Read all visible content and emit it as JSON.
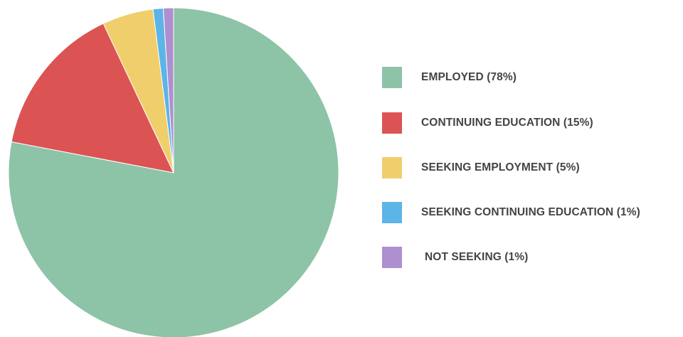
{
  "chart_data": {
    "type": "pie",
    "title": "",
    "categories": [
      "EMPLOYED (78%)",
      "CONTINUING EDUCATION (15%)",
      "SEEKING EMPLOYMENT (5%)",
      "SEEKING CONTINUING EDUCATION (1%)",
      "NOT SEEKING (1%)"
    ],
    "values": [
      78,
      15,
      5,
      1,
      1
    ],
    "colors": [
      "#8dc3a7",
      "#dc5354",
      "#f0ce6b",
      "#5db4e6",
      "#ae8fcf"
    ],
    "legend_position": "right",
    "start_angle": "12 o'clock",
    "direction": "clockwise"
  }
}
